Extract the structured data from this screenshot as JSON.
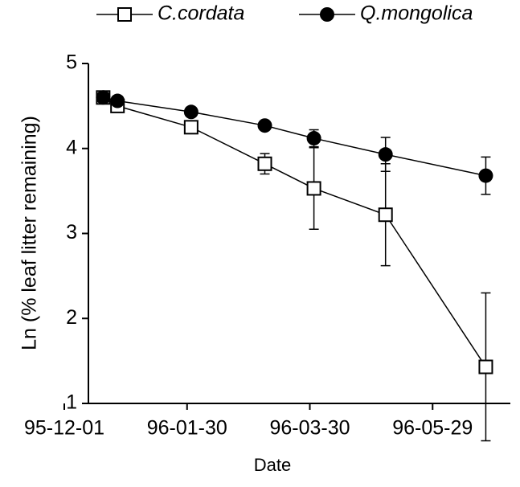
{
  "chart_data": {
    "type": "line",
    "x_label": "Date",
    "y_label": "Ln (% leaf litter remaining)",
    "x": [
      19,
      26,
      62,
      98,
      122,
      157,
      206
    ],
    "xlim": [
      0,
      218
    ],
    "xticks": [
      {
        "value": 0,
        "label": "95-12-01"
      },
      {
        "value": 60,
        "label": "96-01-30"
      },
      {
        "value": 120,
        "label": "96-03-30"
      },
      {
        "value": 180,
        "label": "96-05-29"
      }
    ],
    "ylim": [
      1,
      5
    ],
    "yticks": [
      1,
      2,
      3,
      4,
      5
    ],
    "series": [
      {
        "name": "C.cordata",
        "color": "#000000",
        "marker": "open-square",
        "values": [
          4.6,
          4.5,
          4.25,
          3.82,
          3.53,
          3.22,
          1.43
        ],
        "errors": [
          0.03,
          0.04,
          0.05,
          0.12,
          0.48,
          0.6,
          0.87
        ]
      },
      {
        "name": "Q.mongolica",
        "color": "#000000",
        "marker": "filled-circle",
        "values": [
          4.6,
          4.56,
          4.43,
          4.27,
          4.12,
          3.93,
          3.68
        ],
        "errors": [
          0.02,
          0.02,
          0.03,
          0.03,
          0.1,
          0.2,
          0.22
        ]
      }
    ]
  }
}
